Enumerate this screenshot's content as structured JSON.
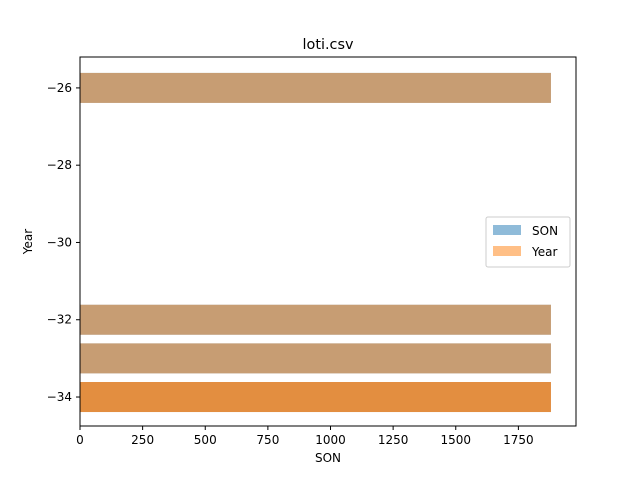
{
  "chart_data": {
    "type": "bar",
    "orientation": "horizontal",
    "title": "loti.csv",
    "xlabel": "SON",
    "ylabel": "Year",
    "xlim": [
      0,
      1980
    ],
    "ylim": [
      -34.75,
      -25.2
    ],
    "xticks": [
      0,
      250,
      500,
      750,
      1000,
      1250,
      1500,
      1750
    ],
    "yticks": [
      -34,
      -32,
      -30,
      -28,
      -26
    ],
    "tick_labels_x": [
      "0",
      "250",
      "500",
      "750",
      "1000",
      "1250",
      "1500",
      "1750"
    ],
    "tick_labels_y": [
      "−34",
      "−32",
      "−30",
      "−28",
      "−26"
    ],
    "legend_position": "center-right",
    "grid": false,
    "series": [
      {
        "name": "SON",
        "color": "#1f77b4",
        "alpha": 0.5,
        "bars": [
          {
            "y": -26,
            "value": 1880
          },
          {
            "y": -32,
            "value": 1880
          },
          {
            "y": -33,
            "value": 1880
          },
          {
            "y": -34,
            "value": 1880
          }
        ]
      },
      {
        "name": "Year",
        "color": "#ff7f0e",
        "alpha": 0.5,
        "bars": [
          {
            "y": -26,
            "value": 1880
          },
          {
            "y": -32,
            "value": 1880
          },
          {
            "y": -33,
            "value": 1880
          },
          {
            "y": -34,
            "value": 1880
          },
          {
            "y": -34,
            "value": 1880
          }
        ]
      }
    ]
  }
}
